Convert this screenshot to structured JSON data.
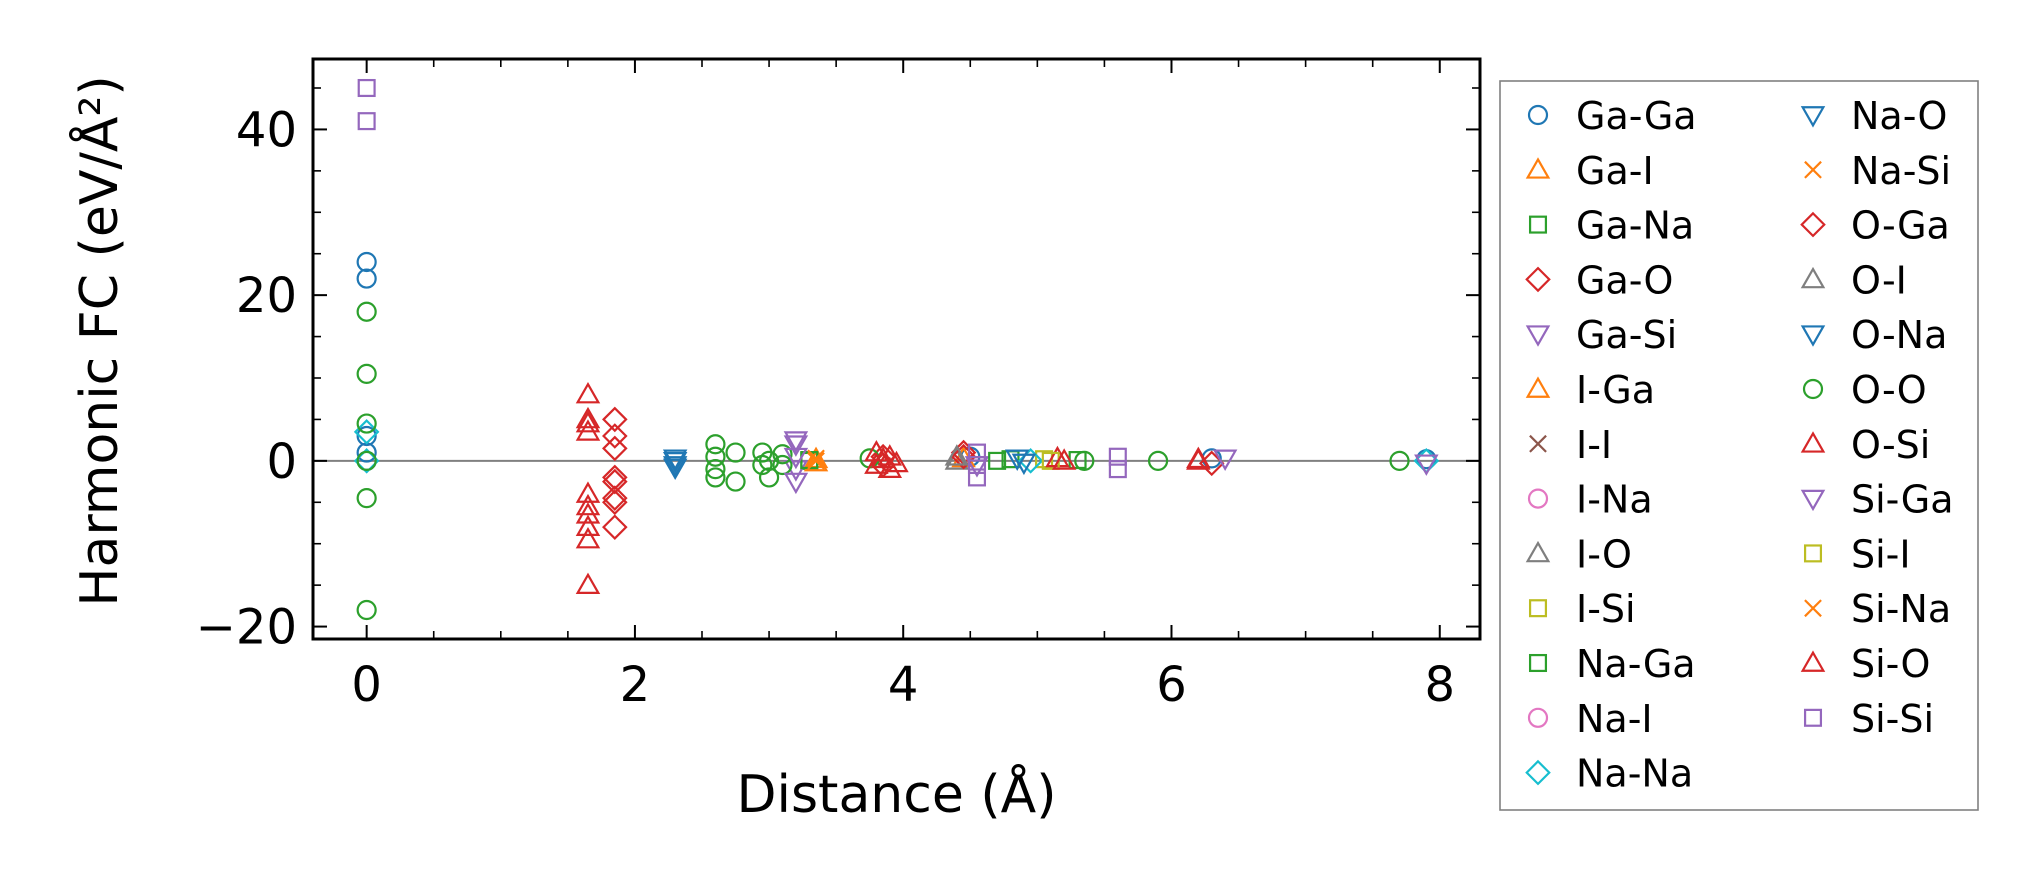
{
  "chart_data": {
    "type": "scatter",
    "xlabel": "Distance (Å)",
    "ylabel": "Harmonic FC (eV/Å²)",
    "xlim": [
      -0.4,
      8.3
    ],
    "ylim": [
      -21.5,
      48.5
    ],
    "xticks": [
      0,
      2,
      4,
      6,
      8
    ],
    "xtick_labels": [
      "0",
      "2",
      "4",
      "6",
      "8"
    ],
    "yticks": [
      -20,
      0,
      20,
      40
    ],
    "ytick_labels": [
      "−20",
      "0",
      "20",
      "40"
    ],
    "reference_line_y": 0,
    "grid": false,
    "legend_position": "outside-right",
    "legend_columns": 2,
    "series": [
      {
        "name": "Ga-Ga",
        "marker": "circle",
        "color": "#1f77b4",
        "filled": false,
        "points": [
          [
            0,
            22.0
          ],
          [
            0,
            24.0
          ],
          [
            0,
            3.0
          ],
          [
            0,
            1.0
          ],
          [
            0,
            0.0
          ],
          [
            4.5,
            0.5
          ],
          [
            6.3,
            0.3
          ],
          [
            7.9,
            0.2
          ]
        ]
      },
      {
        "name": "Ga-I",
        "marker": "triangle-up",
        "color": "#ff7f0e",
        "filled": false,
        "points": [
          [
            3.35,
            0.2
          ],
          [
            4.45,
            0.3
          ]
        ]
      },
      {
        "name": "Ga-Na",
        "marker": "square",
        "color": "#2ca02c",
        "filled": false,
        "points": [
          [
            3.3,
            0.0
          ],
          [
            4.8,
            0.2
          ],
          [
            5.3,
            0.1
          ]
        ]
      },
      {
        "name": "Ga-O",
        "marker": "diamond",
        "color": "#d62728",
        "filled": false,
        "points": [
          [
            1.85,
            5.0
          ],
          [
            1.85,
            3.0
          ],
          [
            1.85,
            1.5
          ],
          [
            1.85,
            -2.0
          ],
          [
            1.85,
            -4.5
          ],
          [
            1.85,
            -8.0
          ],
          [
            3.85,
            0.5
          ],
          [
            4.45,
            1.0
          ],
          [
            6.3,
            -0.3
          ]
        ]
      },
      {
        "name": "Ga-Si",
        "marker": "triangle-down",
        "color": "#9467bd",
        "filled": false,
        "points": [
          [
            3.2,
            2.5
          ],
          [
            3.2,
            -1.0
          ],
          [
            4.55,
            -0.5
          ],
          [
            6.4,
            0.3
          ]
        ]
      },
      {
        "name": "I-Ga",
        "marker": "triangle-up",
        "color": "#ff7f0e",
        "filled": false,
        "points": [
          [
            3.35,
            -0.2
          ]
        ]
      },
      {
        "name": "I-I",
        "marker": "x",
        "color": "#8c564b",
        "filled": false,
        "points": []
      },
      {
        "name": "I-Na",
        "marker": "circle",
        "color": "#e377c2",
        "filled": false,
        "points": []
      },
      {
        "name": "I-O",
        "marker": "triangle-up",
        "color": "#7f7f7f",
        "filled": false,
        "points": [
          [
            4.4,
            0.0
          ]
        ]
      },
      {
        "name": "I-Si",
        "marker": "square",
        "color": "#bcbd22",
        "filled": false,
        "points": [
          [
            5.05,
            0.2
          ]
        ]
      },
      {
        "name": "Na-Ga",
        "marker": "square",
        "color": "#2ca02c",
        "filled": false,
        "points": [
          [
            3.3,
            0.1
          ],
          [
            4.7,
            0.0
          ]
        ]
      },
      {
        "name": "Na-I",
        "marker": "circle",
        "color": "#e377c2",
        "filled": false,
        "points": []
      },
      {
        "name": "Na-Na",
        "marker": "diamond",
        "color": "#17becf",
        "filled": false,
        "points": [
          [
            0,
            0.0
          ],
          [
            0,
            3.5
          ],
          [
            4.95,
            0.0
          ],
          [
            7.9,
            0.0
          ]
        ]
      },
      {
        "name": "Na-O",
        "marker": "triangle-down",
        "color": "#1f77b4",
        "filled": false,
        "points": [
          [
            2.3,
            0.3
          ],
          [
            2.3,
            -0.5
          ],
          [
            4.85,
            0.3
          ]
        ]
      },
      {
        "name": "Na-Si",
        "marker": "x",
        "color": "#ff7f0e",
        "filled": false,
        "points": [
          [
            3.35,
            0.0
          ]
        ]
      },
      {
        "name": "O-Ga",
        "marker": "diamond",
        "color": "#d62728",
        "filled": false,
        "points": [
          [
            1.85,
            -2.5
          ],
          [
            1.85,
            -5.0
          ],
          [
            3.85,
            -0.5
          ],
          [
            4.45,
            0.5
          ]
        ]
      },
      {
        "name": "O-I",
        "marker": "triangle-up",
        "color": "#7f7f7f",
        "filled": false,
        "points": [
          [
            4.4,
            0.5
          ]
        ]
      },
      {
        "name": "O-Na",
        "marker": "triangle-down",
        "color": "#1f77b4",
        "filled": false,
        "points": [
          [
            2.3,
            0.0
          ],
          [
            2.3,
            -0.8
          ],
          [
            4.9,
            -0.2
          ]
        ]
      },
      {
        "name": "O-O",
        "marker": "circle",
        "color": "#2ca02c",
        "filled": false,
        "points": [
          [
            0,
            18.0
          ],
          [
            0,
            10.5
          ],
          [
            0,
            4.5
          ],
          [
            0,
            0.0
          ],
          [
            0,
            -4.5
          ],
          [
            0,
            -18.0
          ],
          [
            2.6,
            2.0
          ],
          [
            2.6,
            0.5
          ],
          [
            2.6,
            -1.0
          ],
          [
            2.6,
            -2.0
          ],
          [
            2.75,
            1.0
          ],
          [
            2.75,
            -2.5
          ],
          [
            2.95,
            1.0
          ],
          [
            2.95,
            -0.5
          ],
          [
            3.0,
            0.0
          ],
          [
            3.0,
            -2.0
          ],
          [
            3.1,
            0.8
          ],
          [
            3.1,
            -0.5
          ],
          [
            3.75,
            0.3
          ],
          [
            5.35,
            0.0
          ],
          [
            5.9,
            0.0
          ],
          [
            7.7,
            0.0
          ]
        ]
      },
      {
        "name": "O-Si",
        "marker": "triangle-up",
        "color": "#d62728",
        "filled": false,
        "points": [
          [
            1.65,
            8.0
          ],
          [
            1.65,
            5.0
          ],
          [
            1.65,
            3.5
          ],
          [
            1.65,
            -4.0
          ],
          [
            1.65,
            -5.5
          ],
          [
            1.65,
            -8.0
          ],
          [
            1.65,
            -9.5
          ],
          [
            1.65,
            -15.0
          ],
          [
            3.8,
            1.0
          ],
          [
            3.8,
            -0.5
          ],
          [
            3.9,
            0.5
          ],
          [
            3.9,
            -1.0
          ],
          [
            5.15,
            0.3
          ],
          [
            6.2,
            0.2
          ]
        ]
      },
      {
        "name": "Si-Ga",
        "marker": "triangle-down",
        "color": "#9467bd",
        "filled": false,
        "points": [
          [
            3.2,
            2.0
          ],
          [
            3.2,
            0.5
          ],
          [
            3.2,
            -2.5
          ],
          [
            7.9,
            -0.3
          ]
        ]
      },
      {
        "name": "Si-I",
        "marker": "square",
        "color": "#bcbd22",
        "filled": false,
        "points": [
          [
            5.1,
            0.0
          ]
        ]
      },
      {
        "name": "Si-Na",
        "marker": "x",
        "color": "#ff7f0e",
        "filled": false,
        "points": [
          [
            3.35,
            0.3
          ]
        ]
      },
      {
        "name": "Si-O",
        "marker": "triangle-up",
        "color": "#d62728",
        "filled": false,
        "points": [
          [
            1.65,
            4.5
          ],
          [
            1.65,
            -6.5
          ],
          [
            3.85,
            0.2
          ],
          [
            3.95,
            -0.3
          ],
          [
            5.2,
            0.0
          ],
          [
            6.2,
            0.0
          ]
        ]
      },
      {
        "name": "Si-Si",
        "marker": "square",
        "color": "#9467bd",
        "filled": false,
        "points": [
          [
            0,
            45.0
          ],
          [
            0,
            41.0
          ],
          [
            4.55,
            1.0
          ],
          [
            4.55,
            -0.5
          ],
          [
            4.55,
            -2.0
          ],
          [
            5.6,
            0.5
          ],
          [
            5.6,
            -1.0
          ]
        ]
      }
    ]
  }
}
